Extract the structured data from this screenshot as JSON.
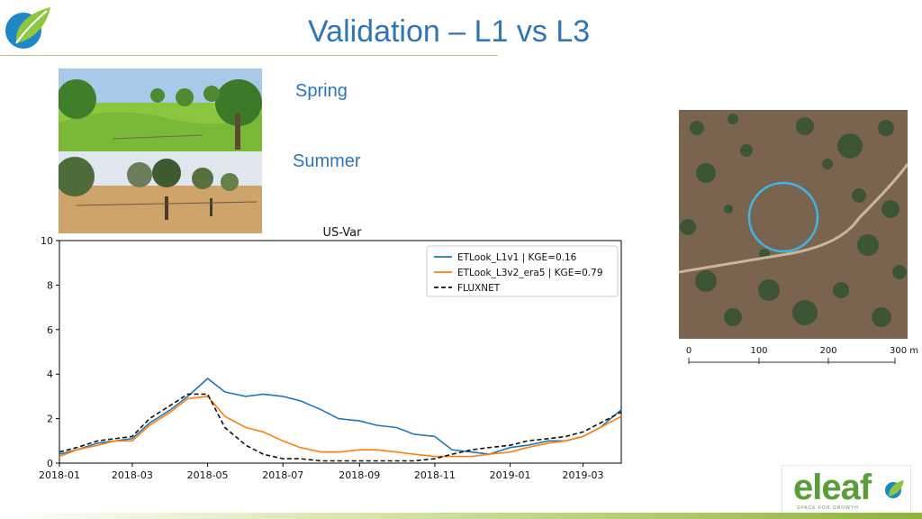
{
  "slide": {
    "title": "Validation – L1 vs L3",
    "labels": {
      "spring": "Spring",
      "summer": "Summer"
    }
  },
  "logo": {
    "wordmark": "eleaf",
    "tagline": "SPACE FOR GROWTH"
  },
  "colors": {
    "title": "#2e75b6",
    "l1": "#1f77b4",
    "l3": "#ff7f0e",
    "flux": "#111111",
    "brand": "#5a9e3a",
    "circle": "#3fb7e6"
  },
  "scale": {
    "ticks": [
      "0",
      "100",
      "200",
      "300 m"
    ]
  },
  "chart_data": {
    "type": "line",
    "title": "US-Var",
    "xlabel": "",
    "ylabel": "",
    "ylim": [
      0,
      10
    ],
    "xlim": [
      "2018-01-01",
      "2019-04-01"
    ],
    "x_ticks": [
      "2018-01",
      "2018-03",
      "2018-05",
      "2018-07",
      "2018-09",
      "2018-11",
      "2019-01",
      "2019-03"
    ],
    "y_ticks": [
      0,
      2,
      4,
      6,
      8,
      10
    ],
    "legend_placement": "upper-right",
    "x": [
      "2018-01-01",
      "2018-01-15",
      "2018-02-01",
      "2018-02-15",
      "2018-03-01",
      "2018-03-15",
      "2018-04-01",
      "2018-04-15",
      "2018-05-01",
      "2018-05-15",
      "2018-06-01",
      "2018-06-15",
      "2018-07-01",
      "2018-07-15",
      "2018-08-01",
      "2018-08-15",
      "2018-09-01",
      "2018-09-15",
      "2018-10-01",
      "2018-10-15",
      "2018-11-01",
      "2018-11-15",
      "2018-12-01",
      "2018-12-15",
      "2019-01-01",
      "2019-01-15",
      "2019-02-01",
      "2019-02-15",
      "2019-03-01",
      "2019-03-15",
      "2019-04-01"
    ],
    "series": [
      {
        "name": "ETLook_L1v1 | KGE=0.16",
        "style": "solid",
        "values": [
          0.4,
          0.6,
          0.9,
          1.0,
          1.1,
          1.8,
          2.4,
          3.0,
          3.8,
          3.2,
          3.0,
          3.1,
          3.0,
          2.8,
          2.4,
          2.0,
          1.9,
          1.7,
          1.6,
          1.3,
          1.2,
          0.6,
          0.5,
          0.4,
          0.7,
          0.8,
          1.0,
          1.0,
          1.2,
          1.6,
          2.4
        ]
      },
      {
        "name": "ETLook_L3v2_era5 | KGE=0.79",
        "style": "solid",
        "values": [
          0.3,
          0.6,
          0.8,
          1.0,
          1.0,
          1.7,
          2.3,
          2.9,
          3.0,
          2.1,
          1.6,
          1.4,
          1.0,
          0.7,
          0.5,
          0.5,
          0.6,
          0.6,
          0.5,
          0.4,
          0.3,
          0.3,
          0.3,
          0.4,
          0.5,
          0.7,
          0.9,
          1.0,
          1.2,
          1.6,
          2.1
        ]
      },
      {
        "name": "FLUXNET",
        "style": "dashed",
        "values": [
          0.5,
          0.7,
          1.0,
          1.1,
          1.2,
          2.0,
          2.6,
          3.1,
          3.1,
          1.6,
          0.8,
          0.4,
          0.2,
          0.2,
          0.1,
          0.1,
          0.1,
          0.1,
          0.1,
          0.1,
          0.2,
          0.4,
          0.6,
          0.7,
          0.8,
          1.0,
          1.1,
          1.2,
          1.4,
          1.8,
          2.3
        ]
      }
    ]
  }
}
